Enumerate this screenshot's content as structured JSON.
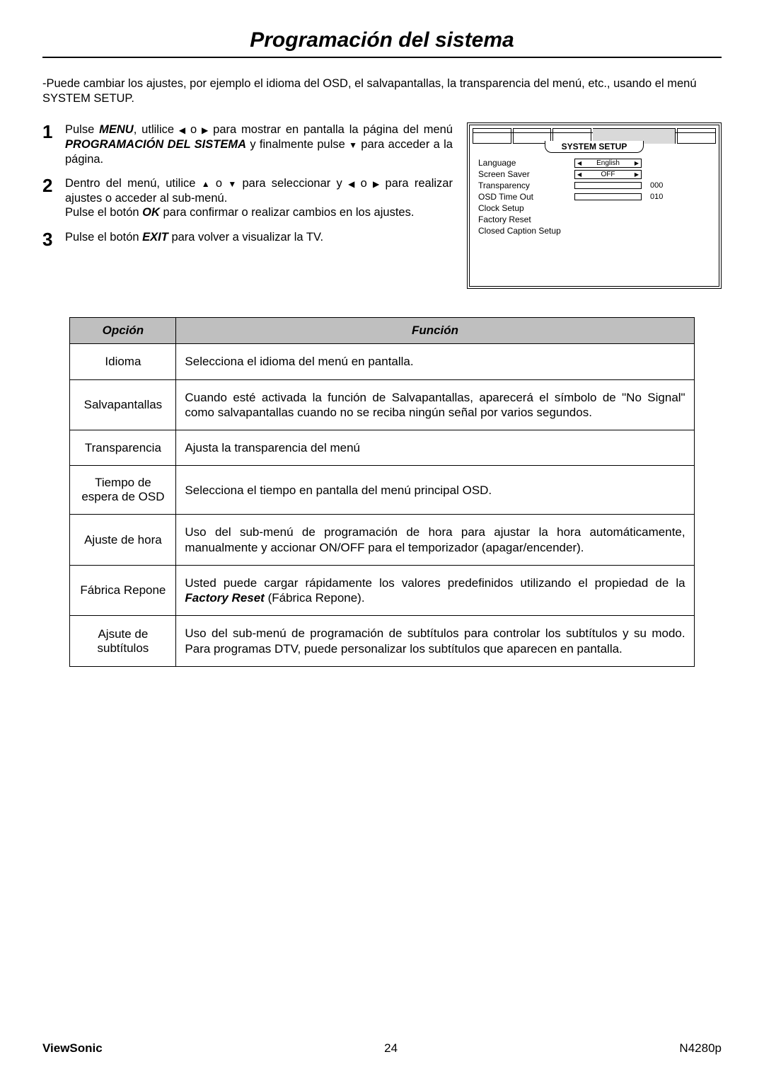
{
  "title": "Programación del sistema",
  "intro": "-Puede cambiar los ajustes, por ejemplo el idioma del OSD, el salvapantallas, la transparencia del menú, etc., usando el menú  SYSTEM SETUP.",
  "steps": {
    "s1": {
      "num": "1",
      "a": "Pulse ",
      "menu": "MENU",
      "b": ", utlilice  ",
      "c": " o ",
      "d": "  para mostrar en pantalla la página del menú ",
      "prog": "PROGRAMACIÓN DEL SISTEMA",
      "e": " y finalmente pulse ",
      "f": " para acceder a la página."
    },
    "s2": {
      "num": "2",
      "a": "Dentro del menú, utilice ",
      "b": " o ",
      "c": "  para seleccionar y  ",
      "d": " o ",
      "e": "  para realizar ajustes o acceder al sub-menú.",
      "f": "Pulse el botón ",
      "ok": "OK",
      "g": " para confirmar o realizar cambios en los ajustes."
    },
    "s3": {
      "num": "3",
      "a": "Pulse el botón ",
      "exit": "EXIT",
      "b": " para volver a visualizar la TV."
    }
  },
  "osd": {
    "header": "SYSTEM SETUP",
    "rows": {
      "language": {
        "label": "Language",
        "value": "English"
      },
      "screensaver": {
        "label": "Screen Saver",
        "value": "OFF"
      },
      "transparency": {
        "label": "Transparency",
        "num": "000"
      },
      "osdtimeout": {
        "label": "OSD Time Out",
        "num": "010"
      },
      "clock": {
        "label": "Clock Setup"
      },
      "factory": {
        "label": "Factory Reset"
      },
      "cc": {
        "label": "Closed Caption Setup"
      }
    }
  },
  "table": {
    "head": {
      "opcion": "Opción",
      "funcion": "Función"
    },
    "rows": [
      {
        "opt": "Idioma",
        "desc": "Selecciona el idioma del menú en pantalla."
      },
      {
        "opt": "Salvapantallas",
        "desc": "Cuando esté activada la función de Salvapantallas, aparecerá el símbolo de \"No Signal\" como salvapantallas cuando no se reciba ningún señal por varios segundos."
      },
      {
        "opt": "Transparencia",
        "desc": "Ajusta la transparencia del menú"
      },
      {
        "opt": "Tiempo de espera de OSD",
        "desc": "Selecciona el tiempo en pantalla del menú principal OSD."
      },
      {
        "opt": "Ajuste de hora",
        "desc": "Uso del sub-menú de programación de hora para ajustar la hora automáticamente, manualmente y accionar ON/OFF para el temporizador (apagar/encender)."
      },
      {
        "opt": "Fábrica Repone",
        "desc_a": "Usted puede cargar rápidamente los valores predefinidos utilizando el propiedad de la ",
        "desc_bi": "Factory Reset",
        "desc_b": " (Fábrica Repone)."
      },
      {
        "opt": "Ajsute de subtítulos",
        "desc": "Uso del sub-menú de programación de subtítulos para controlar los subtítulos y su modo. Para programas DTV, puede personalizar los subtítulos que aparecen en pantalla."
      }
    ]
  },
  "footer": {
    "brand": "ViewSonic",
    "page": "24",
    "model": "N4280p"
  },
  "glyphs": {
    "left": "◀",
    "right": "▶",
    "up": "▲",
    "down": "▼"
  }
}
